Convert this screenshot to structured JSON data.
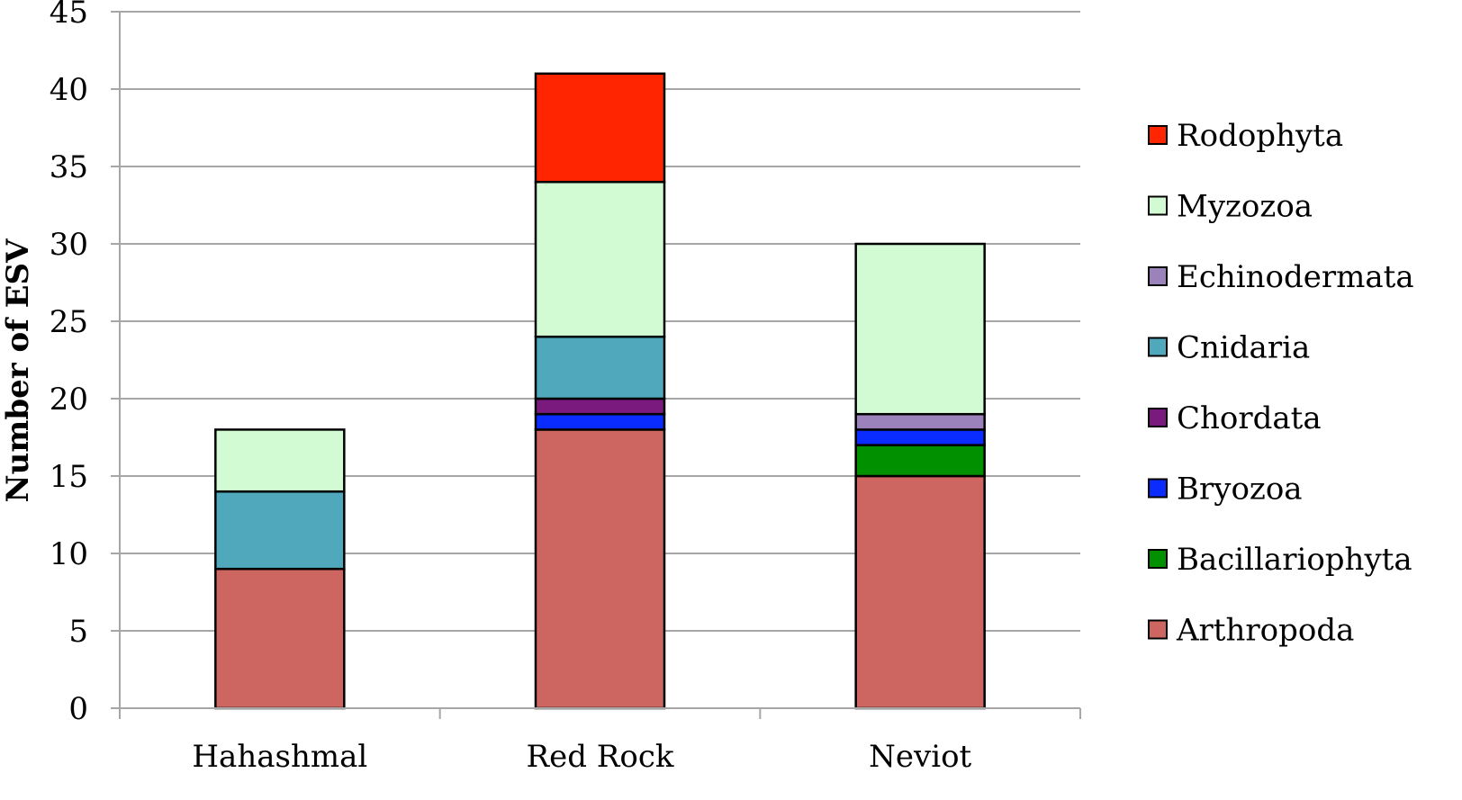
{
  "chart_data": {
    "type": "bar",
    "stacked": true,
    "title": "",
    "xlabel": "",
    "ylabel": "Number of ESV",
    "ylim": [
      0,
      45
    ],
    "y_ticks": [
      0,
      5,
      10,
      15,
      20,
      25,
      30,
      35,
      40,
      45
    ],
    "y_tick_labels": [
      "0",
      "5",
      "10",
      "15",
      "20",
      "25",
      "30",
      "35",
      "40",
      "45"
    ],
    "grid": true,
    "legend_position": "right",
    "categories": [
      "Hahashmal",
      "Red Rock",
      "Neviot"
    ],
    "series": [
      {
        "name": "Arthropoda",
        "color": "#cd6560",
        "values": [
          9,
          18,
          15
        ]
      },
      {
        "name": "Bacillariophyta",
        "color": "#009000",
        "values": [
          0,
          0,
          2
        ]
      },
      {
        "name": "Bryozoa",
        "color": "#0a2cff",
        "values": [
          0,
          1,
          1
        ]
      },
      {
        "name": "Chordata",
        "color": "#7a1a7e",
        "values": [
          0,
          1,
          0
        ]
      },
      {
        "name": "Cnidaria",
        "color": "#50a8bd",
        "values": [
          5,
          4,
          0
        ]
      },
      {
        "name": "Echinodermata",
        "color": "#9b82bb",
        "values": [
          0,
          0,
          1
        ]
      },
      {
        "name": "Myzozoa",
        "color": "#d3fbd3",
        "values": [
          4,
          10,
          11
        ]
      },
      {
        "name": "Rodophyta",
        "color": "#ff2500",
        "values": [
          0,
          7,
          0
        ]
      }
    ]
  }
}
